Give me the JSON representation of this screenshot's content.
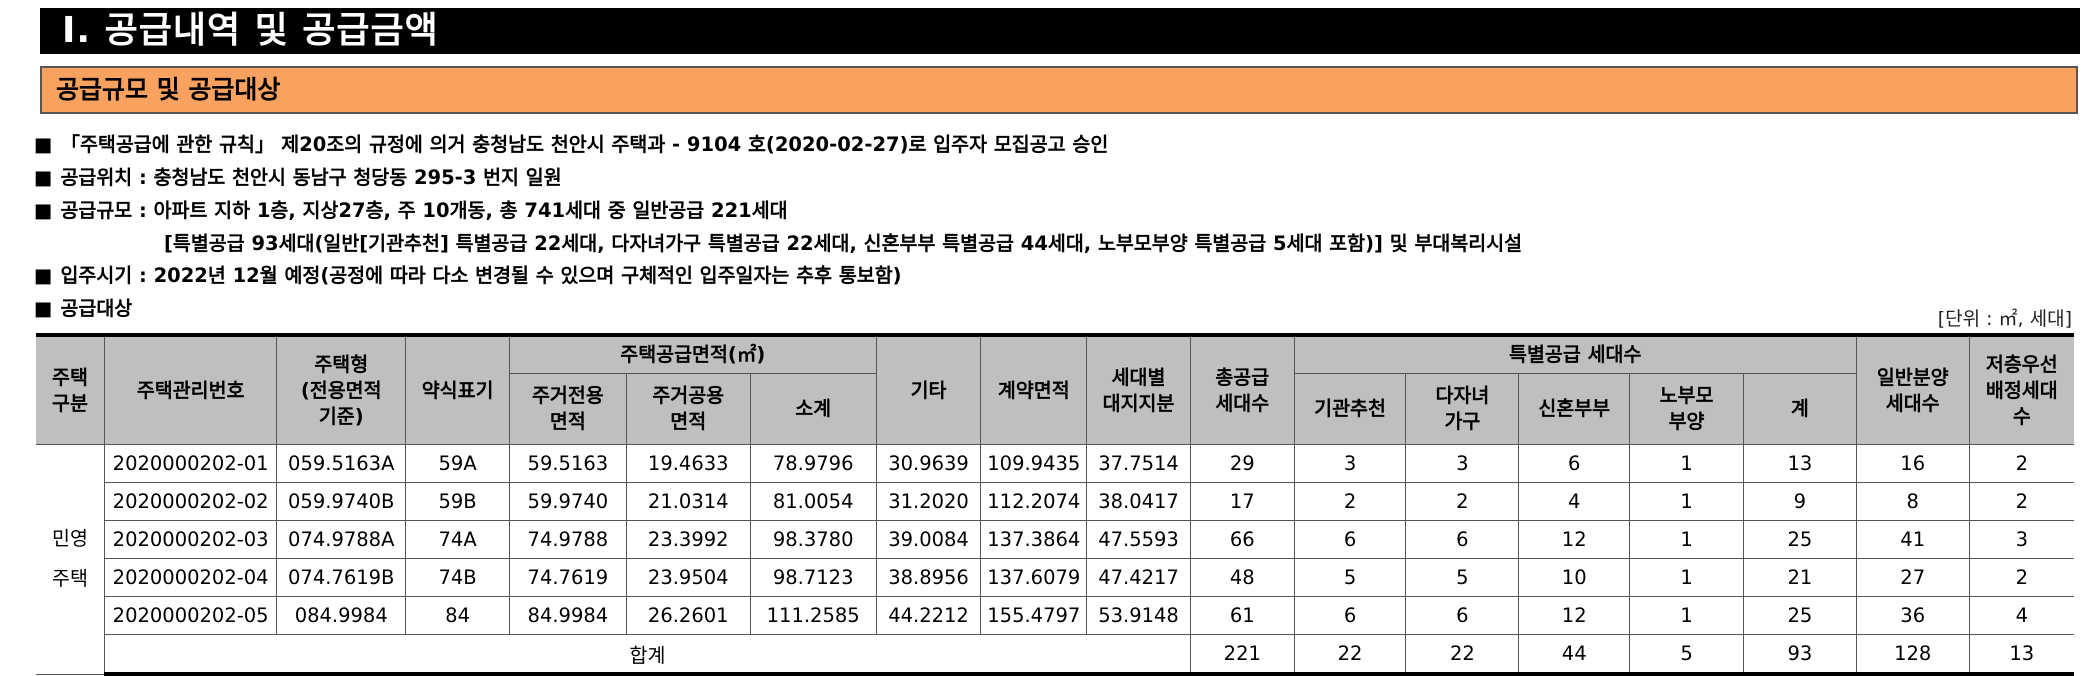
{
  "header": {
    "title": "Ⅰ. 공급내역 및 공급금액",
    "section_title": "공급규모 및 공급대상"
  },
  "bullets": {
    "marker": "■",
    "b1": "「주택공급에 관한 규칙」 제20조의 규정에 의거 충청남도 천안시 주택과 - 9104 호(2020-02-27)로 입주자 모집공고 승인",
    "b2": "공급위치 : 충청남도 천안시 동남구 청당동 295-3 번지 일원",
    "b3": "공급규모 : 아파트 지하 1층, 지상27층, 주 10개동, 총 741세대 중 일반공급 221세대",
    "b3_cont": "[특별공급 93세대(일반[기관추천] 특별공급 22세대, 다자녀가구 특별공급 22세대, 신혼부부 특별공급 44세대, 노부모부양 특별공급 5세대 포함)] 및 부대복리시설",
    "b4": "입주시기 : 2022년 12월 예정(공정에 따라 다소 변경될 수 있으며 구체적인 입주일자는 추후 통보함)",
    "b5": "공급대상"
  },
  "unit_label": "[단위 : ㎡, 세대]",
  "table": {
    "headers": {
      "housing_type": "주택\n구분",
      "mgmt_no": "주택관리번호",
      "house_type": "주택형\n(전용면적\n기준)",
      "short": "약식표기",
      "supply_area_group": "주택공급면적(㎡)",
      "private_area": "주거전용\n면적",
      "common_area": "주거공용\n면적",
      "subtotal": "소계",
      "other": "기타",
      "contract_area": "계약면적",
      "land_share": "세대별\n대지지분",
      "total_supply": "총공급\n세대수",
      "special_group": "특별공급 세대수",
      "institution": "기관추천",
      "multi_child": "다자녀\n가구",
      "newlywed": "신혼부부",
      "elderly": "노부모\n부양",
      "special_sum": "계",
      "general": "일반분양\n세대수",
      "low_floor": "저층우선\n배정세대\n수"
    },
    "category": "민영\n주택",
    "rows": [
      {
        "mgmt_no": "2020000202-01",
        "house_type": "059.5163A",
        "short": "59A",
        "private_area": "59.5163",
        "common_area": "19.4633",
        "subtotal": "78.9796",
        "other": "30.9639",
        "contract_area": "109.9435",
        "land_share": "37.7514",
        "total_supply": "29",
        "institution": "3",
        "multi_child": "3",
        "newlywed": "6",
        "elderly": "1",
        "special_sum": "13",
        "general": "16",
        "low_floor": "2"
      },
      {
        "mgmt_no": "2020000202-02",
        "house_type": "059.9740B",
        "short": "59B",
        "private_area": "59.9740",
        "common_area": "21.0314",
        "subtotal": "81.0054",
        "other": "31.2020",
        "contract_area": "112.2074",
        "land_share": "38.0417",
        "total_supply": "17",
        "institution": "2",
        "multi_child": "2",
        "newlywed": "4",
        "elderly": "1",
        "special_sum": "9",
        "general": "8",
        "low_floor": "2"
      },
      {
        "mgmt_no": "2020000202-03",
        "house_type": "074.9788A",
        "short": "74A",
        "private_area": "74.9788",
        "common_area": "23.3992",
        "subtotal": "98.3780",
        "other": "39.0084",
        "contract_area": "137.3864",
        "land_share": "47.5593",
        "total_supply": "66",
        "institution": "6",
        "multi_child": "6",
        "newlywed": "12",
        "elderly": "1",
        "special_sum": "25",
        "general": "41",
        "low_floor": "3"
      },
      {
        "mgmt_no": "2020000202-04",
        "house_type": "074.7619B",
        "short": "74B",
        "private_area": "74.7619",
        "common_area": "23.9504",
        "subtotal": "98.7123",
        "other": "38.8956",
        "contract_area": "137.6079",
        "land_share": "47.4217",
        "total_supply": "48",
        "institution": "5",
        "multi_child": "5",
        "newlywed": "10",
        "elderly": "1",
        "special_sum": "21",
        "general": "27",
        "low_floor": "2"
      },
      {
        "mgmt_no": "2020000202-05",
        "house_type": "084.9984",
        "short": "84",
        "private_area": "84.9984",
        "common_area": "26.2601",
        "subtotal": "111.2585",
        "other": "44.2212",
        "contract_area": "155.4797",
        "land_share": "53.9148",
        "total_supply": "61",
        "institution": "6",
        "multi_child": "6",
        "newlywed": "12",
        "elderly": "1",
        "special_sum": "25",
        "general": "36",
        "low_floor": "4"
      }
    ],
    "total": {
      "label": "합계",
      "total_supply": "221",
      "institution": "22",
      "multi_child": "22",
      "newlywed": "44",
      "elderly": "5",
      "special_sum": "93",
      "general": "128",
      "low_floor": "13"
    }
  }
}
